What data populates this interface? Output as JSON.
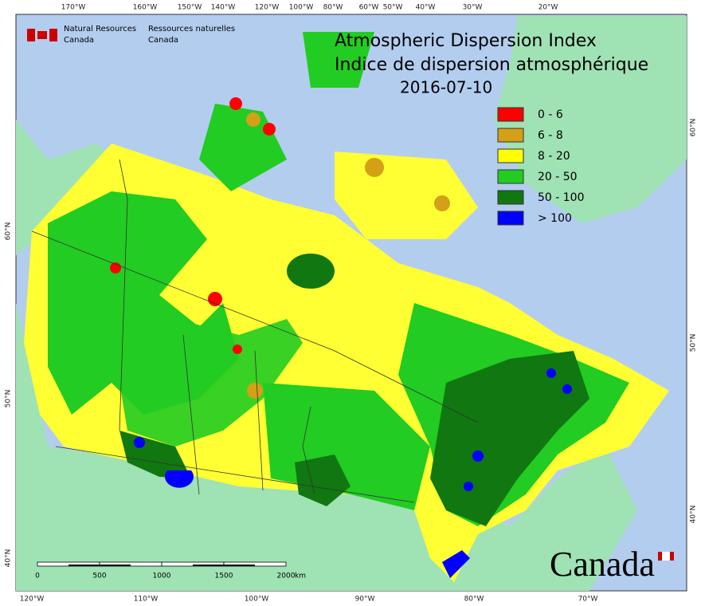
{
  "header": {
    "agency_en": "Natural Resources",
    "agency_en_2": "Canada",
    "agency_fr": "Ressources naturelles",
    "agency_fr_2": "Canada",
    "title_en": "Atmospheric Dispersion Index",
    "title_fr": "Indice de dispersion atmosphérique",
    "date": "2016-07-10"
  },
  "legend": {
    "items": [
      {
        "label": "0 - 6",
        "color": "#ff0000"
      },
      {
        "label": "6 - 8",
        "color": "#d4a017"
      },
      {
        "label": "8 - 20",
        "color": "#ffff00"
      },
      {
        "label": "20 - 50",
        "color": "#22cc22"
      },
      {
        "label": "50 - 100",
        "color": "#117711"
      },
      {
        "label": "> 100",
        "color": "#0000ff"
      }
    ]
  },
  "graticule": {
    "top": [
      "170°W",
      "160°W",
      "150°W",
      "140°W",
      "120°W",
      "100°W",
      "80°W",
      "60°W",
      "50°W",
      "40°W",
      "30°W",
      "20°W"
    ],
    "bottom": [
      "120°W",
      "110°W",
      "100°W",
      "90°W",
      "80°W",
      "70°W"
    ],
    "left": [
      "60°N",
      "50°N",
      "40°N"
    ],
    "right": [
      "60°N",
      "50°N",
      "40°N"
    ]
  },
  "scale_bar": {
    "ticks": [
      "0",
      "500",
      "1000",
      "1500",
      "2000"
    ],
    "unit": "km"
  },
  "wordmark": "Canada"
}
